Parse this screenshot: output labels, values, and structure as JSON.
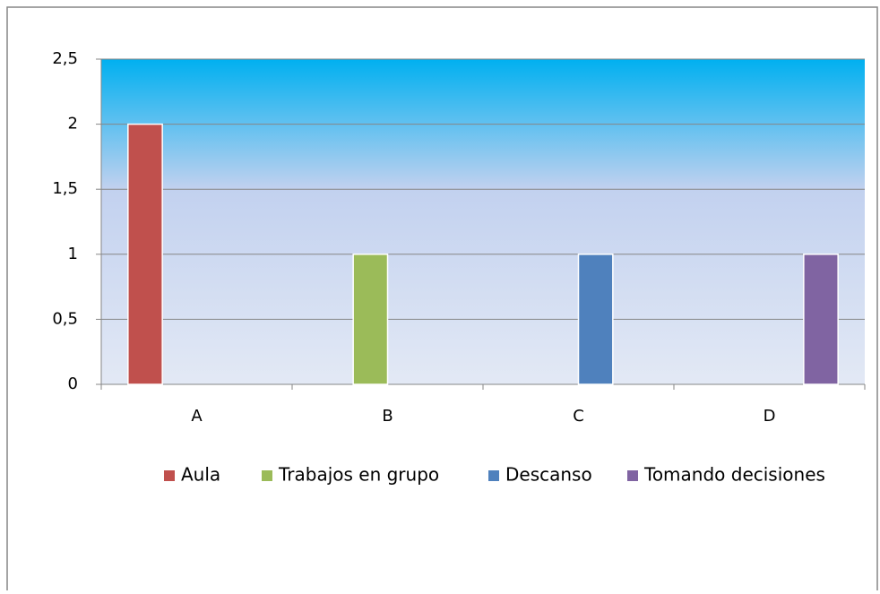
{
  "chart_data": {
    "type": "bar",
    "categories": [
      "A",
      "B",
      "C",
      "D"
    ],
    "series": [
      {
        "name": "Aula",
        "color": "#c0504d",
        "values": [
          2,
          null,
          null,
          null
        ]
      },
      {
        "name": "Trabajos en grupo",
        "color": "#9bbb59",
        "values": [
          null,
          1,
          null,
          null
        ]
      },
      {
        "name": "Descanso",
        "color": "#4f81bd",
        "values": [
          null,
          null,
          1,
          null
        ]
      },
      {
        "name": "Tomando decisiones",
        "color": "#8064a2",
        "values": [
          null,
          null,
          null,
          1
        ]
      }
    ],
    "ylim": [
      0,
      2.5
    ],
    "yticks": [
      0,
      {
        "value": 0.5,
        "label": "0,5"
      },
      1,
      {
        "value": 1.5,
        "label": "1,5"
      },
      2,
      {
        "value": 2.5,
        "label": "2,5"
      }
    ],
    "grid": true,
    "legend": "bottom"
  }
}
